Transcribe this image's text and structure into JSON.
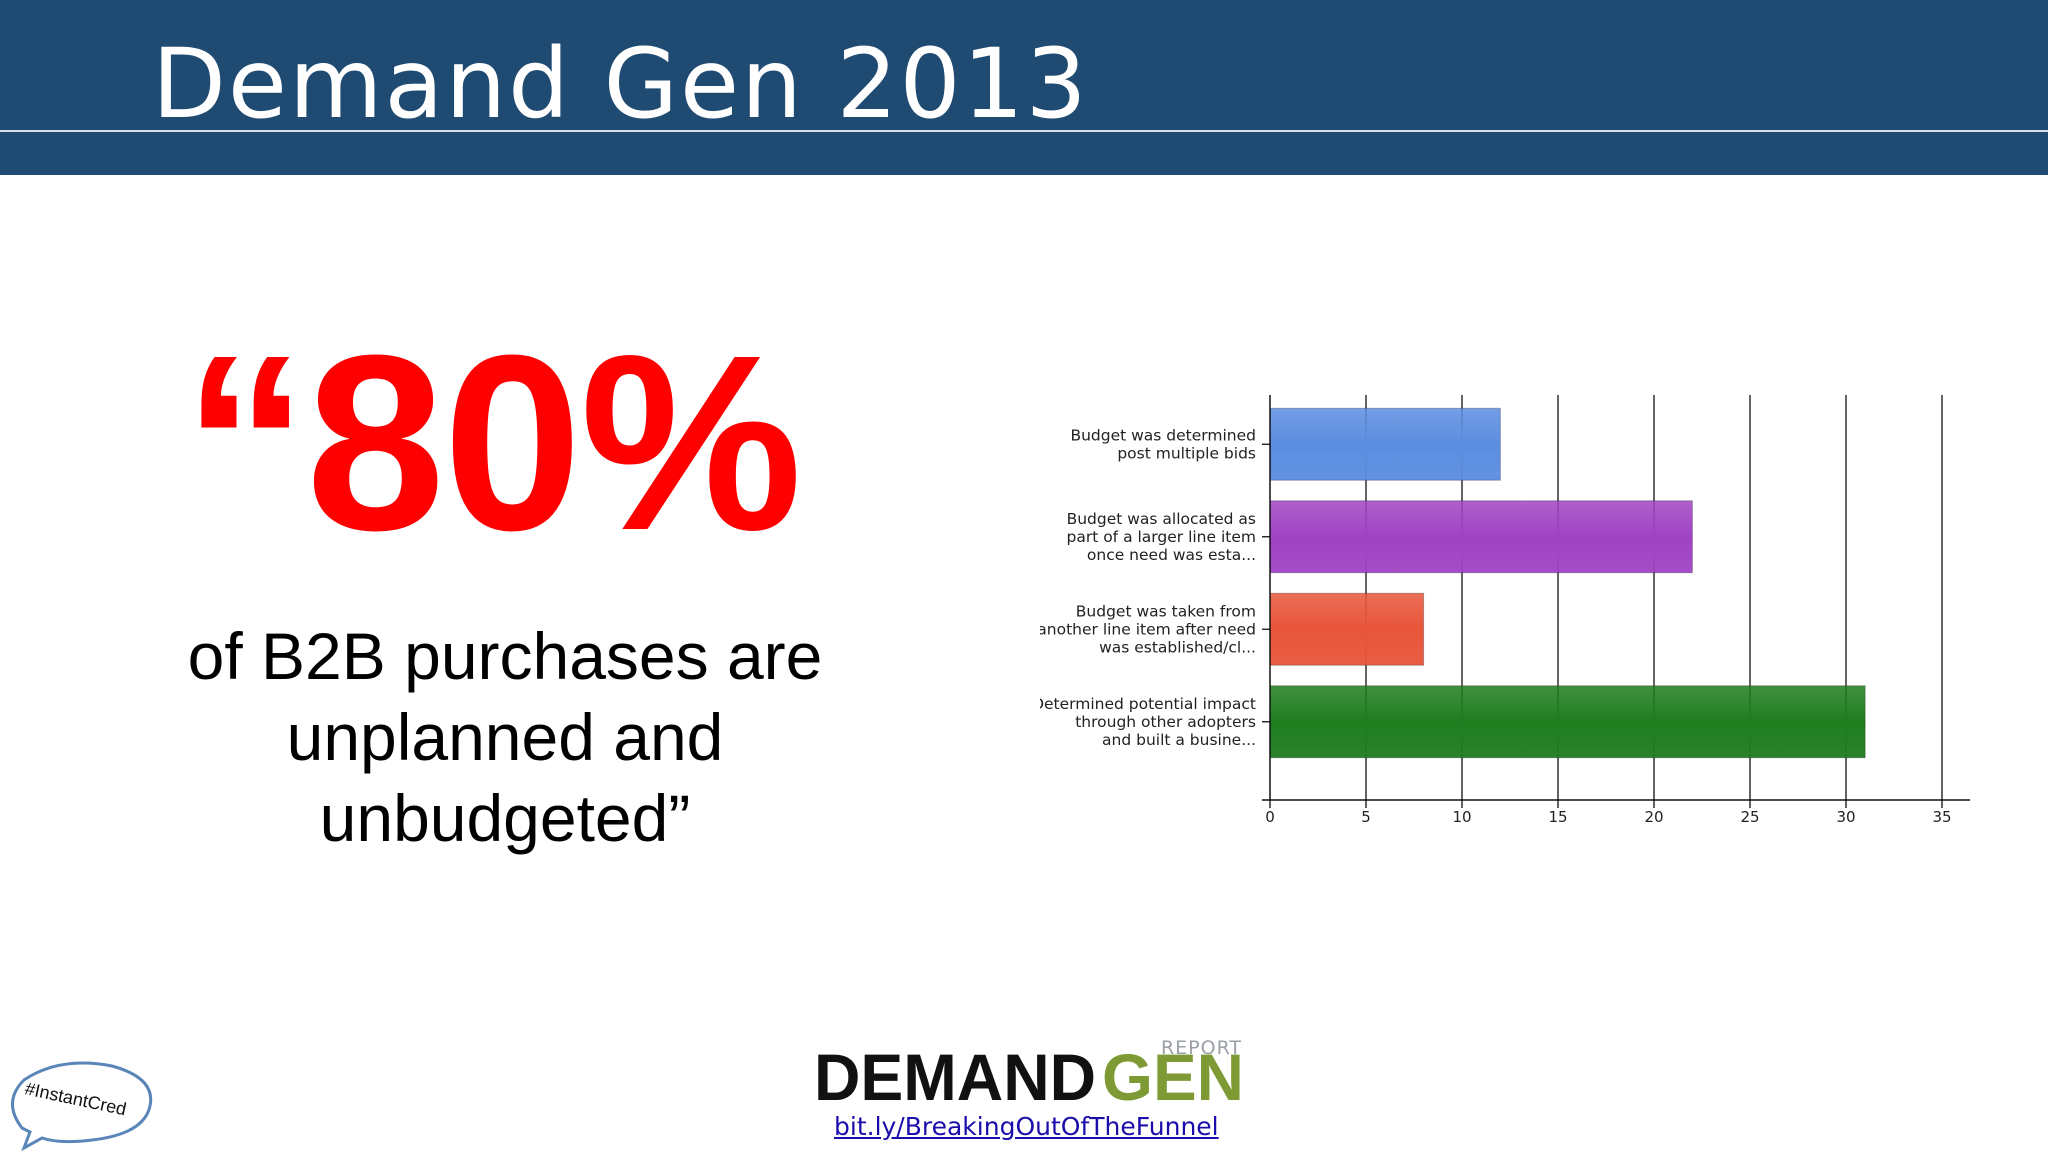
{
  "slide": {
    "title": "Demand Gen 2013",
    "stat": "“80%",
    "quote_lines": [
      "of B2B purchases are",
      "unplanned and",
      "unbudgeted”"
    ],
    "link": "bit.ly/BreakingOutOfTheFunnel",
    "hashtag": "#InstantCred"
  },
  "logo": {
    "word1": "DEMAND",
    "word2": "GEN",
    "tag": "REPORT"
  },
  "colors": {
    "header": "#1f4a71",
    "stat": "#ff0000",
    "link": "#1a0dab"
  },
  "chart_data": {
    "type": "bar",
    "orientation": "horizontal",
    "categories": [
      [
        "Budget was determined",
        "post multiple bids"
      ],
      [
        "Budget was allocated as",
        "part of a larger line item",
        "once need was esta..."
      ],
      [
        "Budget was taken from",
        "another line item after need",
        "was established/cl..."
      ],
      [
        "Determined potential impact",
        "through other adopters",
        "and built a busine..."
      ]
    ],
    "values": [
      12,
      22,
      8,
      31
    ],
    "bar_colors": [
      "#5b8de0",
      "#a043c4",
      "#e8553a",
      "#1f7d1f"
    ],
    "xlim": [
      0,
      35
    ],
    "xticks": [
      "0",
      "5",
      "10",
      "15",
      "20",
      "25",
      "30",
      "35"
    ],
    "grid": true,
    "legend": "none"
  }
}
